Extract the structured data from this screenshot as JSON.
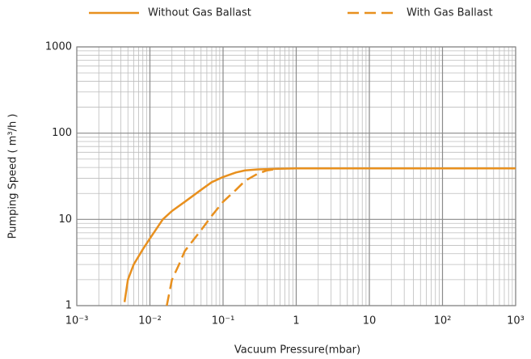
{
  "chart_data": {
    "type": "line",
    "x_label": "Vacuum Pressure(mbar)",
    "y_label": "Pumping Speed ( m³/h )",
    "xlog": true,
    "ylog": true,
    "grid": true,
    "minor_grid": true,
    "xlim": [
      0.001,
      1000
    ],
    "ylim": [
      1,
      1000
    ],
    "xticks": [
      {
        "value": 0.001,
        "label": "10⁻³"
      },
      {
        "value": 0.01,
        "label": "10⁻²"
      },
      {
        "value": 0.1,
        "label": "10⁻¹"
      },
      1,
      10,
      {
        "value": 100,
        "label": "10²"
      },
      {
        "value": 1000,
        "label": "10³"
      }
    ],
    "yticks": [
      1,
      10,
      100,
      1000
    ],
    "legend": "top",
    "series": [
      {
        "name": "Without Gas Ballast",
        "color": "#e8901e",
        "dash": "solid",
        "x": [
          0.0045,
          0.005,
          0.006,
          0.008,
          0.01,
          0.015,
          0.02,
          0.03,
          0.05,
          0.07,
          0.1,
          0.15,
          0.2,
          0.3,
          0.5,
          1,
          10,
          100,
          1000
        ],
        "values": [
          1.1,
          2,
          3,
          4.5,
          6,
          10,
          12.5,
          16,
          22,
          27,
          31,
          35,
          37,
          38,
          38.5,
          39,
          39,
          39,
          39
        ]
      },
      {
        "name": "With Gas Ballast",
        "color": "#e8901e",
        "dash": "dashed",
        "x": [
          0.017,
          0.02,
          0.025,
          0.03,
          0.05,
          0.07,
          0.1,
          0.15,
          0.2,
          0.3,
          0.4,
          0.5
        ],
        "values": [
          1,
          2,
          3,
          4.3,
          7.5,
          11,
          16,
          22,
          28,
          34,
          37,
          38
        ]
      }
    ]
  }
}
